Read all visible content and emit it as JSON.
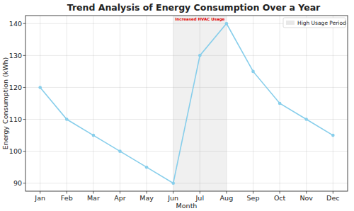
{
  "chart_data": {
    "type": "line",
    "title": "Trend Analysis of Energy Consumption Over a Year",
    "x_label": "Month",
    "y_label": "Energy Consumption (kWh)",
    "categories": [
      "Jan",
      "Feb",
      "Mar",
      "Apr",
      "May",
      "Jun",
      "Jul",
      "Aug",
      "Sep",
      "Oct",
      "Nov",
      "Dec"
    ],
    "values": [
      120,
      110,
      105,
      100,
      95,
      90,
      130,
      140,
      125,
      115,
      110,
      105
    ],
    "color": "#87ceeb",
    "marker": "circle",
    "ylim": [
      87.5,
      142.5
    ],
    "yticks": [
      90,
      100,
      110,
      120,
      130,
      140
    ],
    "grid": true,
    "legend": "upper right",
    "highlight": {
      "from": "Jun",
      "to": "Aug",
      "name": "High Usage Period"
    },
    "annotations": [
      {
        "text": "Increased HVAC Usage",
        "x": "Jul",
        "y": 141.3
      }
    ]
  }
}
